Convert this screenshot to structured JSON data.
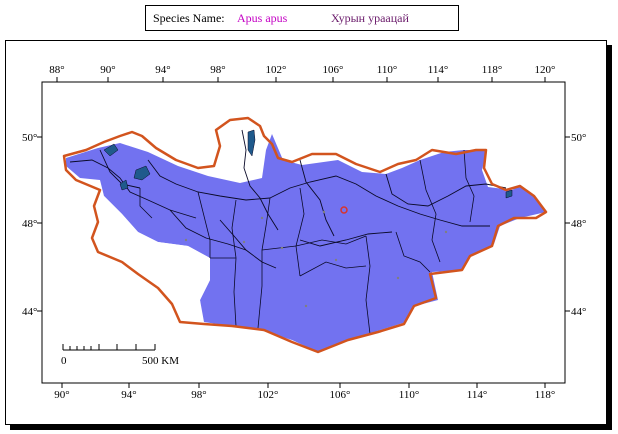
{
  "species": {
    "label": "Species Name:",
    "latin_name": "Apus apus",
    "local_name": "Хурын ураацай"
  },
  "map": {
    "top_longitude_labels": [
      "88°",
      "90°",
      "94°",
      "98°",
      "102°",
      "106°",
      "110°",
      "114°",
      "118°",
      "120°"
    ],
    "bottom_longitude_labels": [
      "90°",
      "94°",
      "98°",
      "102°",
      "106°",
      "110°",
      "114°",
      "118°"
    ],
    "left_latitude_labels": [
      "50°",
      "48°",
      "44°"
    ],
    "right_latitude_labels": [
      "50°",
      "48°",
      "44°"
    ],
    "scale_bar": {
      "start_label": "0",
      "end_label": "500 KM"
    },
    "colors": {
      "range_fill": "#7272f0",
      "border": "#d2541e",
      "lakes": "#1f5a8c",
      "rivers": "#0a0a28",
      "sample_points": "#7f7f7f",
      "capital_marker": "#d8342c"
    }
  }
}
